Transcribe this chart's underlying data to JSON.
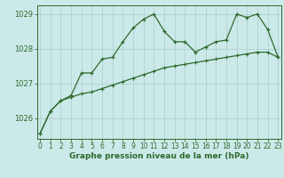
{
  "line1_x": [
    0,
    1,
    2,
    3,
    4,
    5,
    6,
    7,
    8,
    9,
    10,
    11,
    12,
    13,
    14,
    15,
    16,
    17,
    18,
    19,
    20,
    21,
    22,
    23
  ],
  "line1_y": [
    1025.55,
    1026.2,
    1026.5,
    1026.65,
    1027.3,
    1027.3,
    1027.7,
    1027.75,
    1028.2,
    1028.6,
    1028.85,
    1029.0,
    1028.5,
    1028.2,
    1028.2,
    1027.9,
    1028.05,
    1028.2,
    1028.25,
    1029.0,
    1028.9,
    1029.0,
    1028.55,
    1027.75
  ],
  "line2_x": [
    0,
    1,
    2,
    3,
    4,
    5,
    6,
    7,
    8,
    9,
    10,
    11,
    12,
    13,
    14,
    15,
    16,
    17,
    18,
    19,
    20,
    21,
    22,
    23
  ],
  "line2_y": [
    1025.55,
    1026.2,
    1026.5,
    1026.6,
    1026.7,
    1026.75,
    1026.85,
    1026.95,
    1027.05,
    1027.15,
    1027.25,
    1027.35,
    1027.45,
    1027.5,
    1027.55,
    1027.6,
    1027.65,
    1027.7,
    1027.75,
    1027.8,
    1027.85,
    1027.9,
    1027.9,
    1027.75
  ],
  "line_color": "#2d6a2d",
  "bg_color": "#cce9e9",
  "grid_color": "#b0d0d0",
  "xlabel": "Graphe pression niveau de la mer (hPa)",
  "ylim": [
    1025.4,
    1029.25
  ],
  "xlim": [
    -0.3,
    23.3
  ],
  "yticks": [
    1026,
    1027,
    1028,
    1029
  ],
  "xticks": [
    0,
    1,
    2,
    3,
    4,
    5,
    6,
    7,
    8,
    9,
    10,
    11,
    12,
    13,
    14,
    15,
    16,
    17,
    18,
    19,
    20,
    21,
    22,
    23
  ],
  "tick_fontsize": 5.5,
  "xlabel_fontsize": 6.5
}
